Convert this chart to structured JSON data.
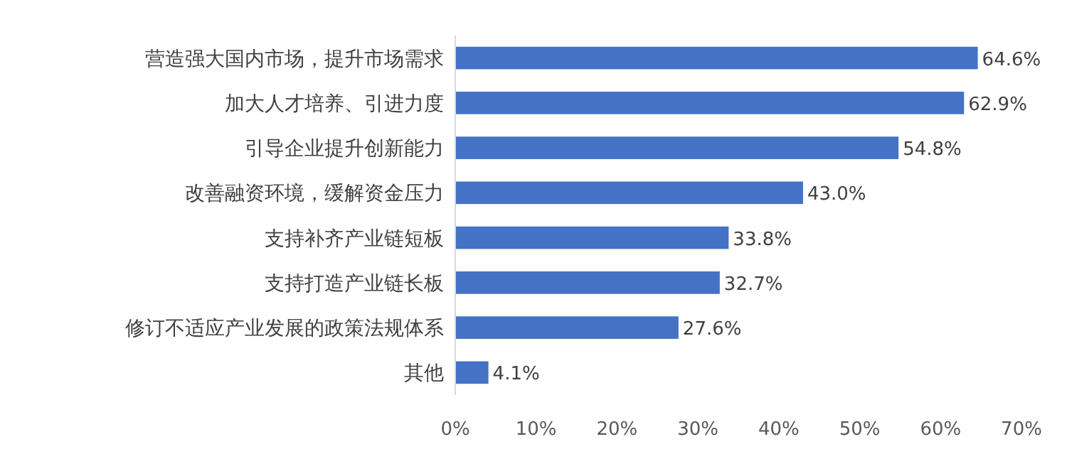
{
  "chart_data": {
    "type": "bar",
    "orientation": "horizontal",
    "categories": [
      "营造强大国内市场，提升市场需求",
      "加大人才培养、引进力度",
      "引导企业提升创新能力",
      "改善融资环境，缓解资金压力",
      "支持补齐产业链短板",
      "支持打造产业链长板",
      "修订不适应产业发展的政策法规体系",
      "其他"
    ],
    "values": [
      64.6,
      62.9,
      54.8,
      43.0,
      33.8,
      32.7,
      27.6,
      4.1
    ],
    "value_labels": [
      "64.6%",
      "62.9%",
      "54.8%",
      "43.0%",
      "33.8%",
      "32.7%",
      "27.6%",
      "4.1%"
    ],
    "color": "#4472c4",
    "xlim": [
      0,
      70
    ],
    "xticks": [
      {
        "value": 0,
        "label": "0%"
      },
      {
        "value": 10,
        "label": "10%"
      },
      {
        "value": 20,
        "label": "20%"
      },
      {
        "value": 30,
        "label": "30%"
      },
      {
        "value": 40,
        "label": "40%"
      },
      {
        "value": 50,
        "label": "50%"
      },
      {
        "value": 60,
        "label": "60%"
      },
      {
        "value": 70,
        "label": "70%"
      }
    ]
  }
}
